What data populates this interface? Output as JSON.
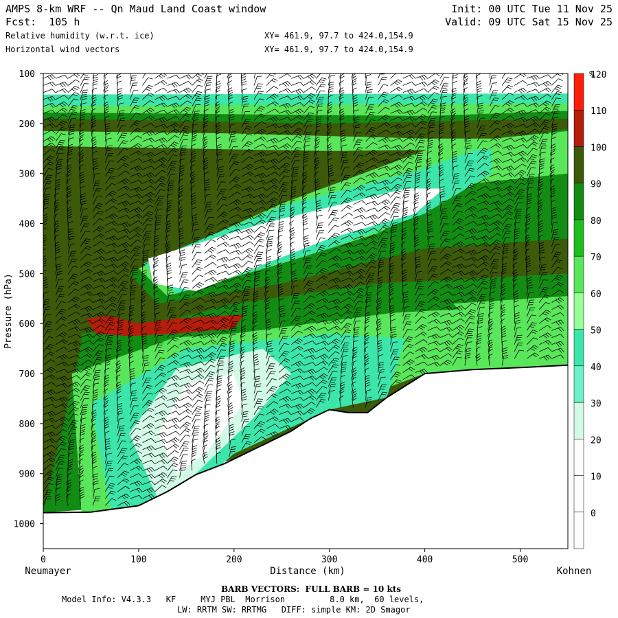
{
  "header": {
    "title": "AMPS 8-km WRF -- Qn Maud Land Coast window",
    "fcst": "Fcst:  105 h",
    "field1": "Relative humidity (w.r.t. ice)",
    "field2": "Horizontal wind vectors",
    "init": "Init: 00 UTC Tue 11 Nov 25",
    "valid": "Valid: 09 UTC Sat 15 Nov 25",
    "xy1": "XY= 461.9, 97.7 to 424.0,154.9",
    "xy2": "XY= 461.9, 97.7 to 424.0,154.9"
  },
  "chart_data": {
    "type": "heatmap",
    "xlabel": "Distance (km)",
    "ylabel": "Pressure (hPa)",
    "xlim": [
      0,
      550
    ],
    "ylim": [
      1050,
      100
    ],
    "x_ticks": [
      0,
      100,
      200,
      300,
      400,
      500
    ],
    "y_ticks": [
      100,
      200,
      300,
      400,
      500,
      600,
      700,
      800,
      900,
      1000
    ],
    "x_left_label": "Neumayer",
    "x_right_label": "Kohnen",
    "colorbar": {
      "unit": "%",
      "levels": [
        0,
        10,
        20,
        30,
        40,
        50,
        60,
        70,
        80,
        90,
        100,
        110,
        120
      ],
      "colors": [
        "#ffffff",
        "#ffffff",
        "#ffffff",
        "#d2fae6",
        "#6ef0c8",
        "#3ce6aa",
        "#96ff96",
        "#5ae65a",
        "#1ebe1e",
        "#128c12",
        "#3c5a0a",
        "#b41e0a",
        "#ff1e0a"
      ]
    },
    "terrain": [
      [
        0,
        978
      ],
      [
        50,
        977
      ],
      [
        100,
        964
      ],
      [
        130,
        936
      ],
      [
        160,
        902
      ],
      [
        190,
        880
      ],
      [
        230,
        843
      ],
      [
        260,
        815
      ],
      [
        280,
        790
      ],
      [
        300,
        772
      ],
      [
        320,
        778
      ],
      [
        340,
        778
      ],
      [
        360,
        748
      ],
      [
        400,
        700
      ],
      [
        450,
        692
      ],
      [
        500,
        688
      ],
      [
        550,
        683
      ]
    ],
    "regions": [
      {
        "rh": 105,
        "polygon": [
          [
            0,
            180
          ],
          [
            550,
            180
          ],
          [
            550,
            683
          ],
          [
            0,
            978
          ]
        ]
      },
      {
        "rh": 95,
        "polygon": [
          [
            40,
            640
          ],
          [
            200,
            560
          ],
          [
            350,
            520
          ],
          [
            550,
            500
          ],
          [
            550,
            683
          ],
          [
            400,
            700
          ],
          [
            300,
            772
          ],
          [
            200,
            860
          ],
          [
            100,
            964
          ],
          [
            0,
            978
          ]
        ]
      },
      {
        "rh": 75,
        "polygon": [
          [
            30,
            700
          ],
          [
            150,
            620
          ],
          [
            300,
            585
          ],
          [
            450,
            570
          ],
          [
            550,
            560
          ],
          [
            550,
            683
          ],
          [
            400,
            700
          ],
          [
            300,
            772
          ],
          [
            200,
            860
          ],
          [
            100,
            964
          ],
          [
            40,
            978
          ]
        ]
      },
      {
        "rh": 55,
        "polygon": [
          [
            50,
            760
          ],
          [
            150,
            650
          ],
          [
            300,
            620
          ],
          [
            380,
            630
          ],
          [
            360,
            748
          ],
          [
            300,
            772
          ],
          [
            200,
            860
          ],
          [
            140,
            960
          ],
          [
            70,
            970
          ]
        ]
      },
      {
        "rh": 35,
        "polygon": [
          [
            90,
            820
          ],
          [
            140,
            690
          ],
          [
            230,
            650
          ],
          [
            260,
            700
          ],
          [
            220,
            790
          ],
          [
            160,
            900
          ],
          [
            120,
            950
          ]
        ]
      },
      {
        "rh": 15,
        "polygon": [
          [
            120,
            820
          ],
          [
            150,
            720
          ],
          [
            200,
            700
          ],
          [
            210,
            760
          ],
          [
            170,
            860
          ],
          [
            140,
            900
          ]
        ]
      },
      {
        "rh": 95,
        "polygon": [
          [
            0,
            170
          ],
          [
            550,
            165
          ],
          [
            550,
            190
          ],
          [
            300,
            200
          ],
          [
            0,
            190
          ]
        ]
      },
      {
        "rh": 75,
        "polygon": [
          [
            0,
            150
          ],
          [
            550,
            148
          ],
          [
            550,
            175
          ],
          [
            400,
            185
          ],
          [
            0,
            178
          ]
        ]
      },
      {
        "rh": 55,
        "polygon": [
          [
            0,
            142
          ],
          [
            550,
            140
          ],
          [
            550,
            160
          ],
          [
            0,
            165
          ]
        ]
      },
      {
        "rh": 95,
        "polygon": [
          [
            90,
            500
          ],
          [
            250,
            370
          ],
          [
            420,
            250
          ],
          [
            550,
            210
          ],
          [
            550,
            430
          ],
          [
            400,
            450
          ],
          [
            250,
            520
          ],
          [
            120,
            560
          ]
        ]
      },
      {
        "rh": 75,
        "polygon": [
          [
            100,
            490
          ],
          [
            250,
            360
          ],
          [
            420,
            240
          ],
          [
            550,
            215
          ],
          [
            550,
            300
          ],
          [
            450,
            320
          ],
          [
            350,
            420
          ],
          [
            250,
            480
          ],
          [
            130,
            545
          ]
        ]
      },
      {
        "rh": 55,
        "polygon": [
          [
            105,
            480
          ],
          [
            250,
            365
          ],
          [
            400,
            290
          ],
          [
            470,
            240
          ],
          [
            470,
            300
          ],
          [
            400,
            380
          ],
          [
            300,
            450
          ],
          [
            140,
            540
          ]
        ]
      },
      {
        "rh": 15,
        "polygon": [
          [
            110,
            470
          ],
          [
            230,
            400
          ],
          [
            380,
            330
          ],
          [
            420,
            330
          ],
          [
            390,
            380
          ],
          [
            300,
            430
          ],
          [
            160,
            535
          ],
          [
            115,
            520
          ]
        ]
      },
      {
        "rh": 95,
        "polygon": [
          [
            40,
            620
          ],
          [
            200,
            585
          ],
          [
            400,
            540
          ],
          [
            550,
            520
          ],
          [
            550,
            560
          ],
          [
            400,
            570
          ],
          [
            200,
            620
          ],
          [
            40,
            640
          ]
        ]
      },
      {
        "rh": 115,
        "polygon": [
          [
            45,
            590
          ],
          [
            70,
            585
          ],
          [
            100,
            600
          ],
          [
            140,
            590
          ],
          [
            210,
            582
          ],
          [
            200,
            610
          ],
          [
            140,
            620
          ],
          [
            90,
            625
          ],
          [
            55,
            620
          ]
        ]
      },
      {
        "rh": 75,
        "polygon": [
          [
            430,
            560
          ],
          [
            550,
            545
          ],
          [
            550,
            600
          ],
          [
            450,
            605
          ]
        ]
      },
      {
        "rh": 75,
        "polygon": [
          [
            0,
            215
          ],
          [
            200,
            220
          ],
          [
            400,
            230
          ],
          [
            550,
            230
          ],
          [
            550,
            250
          ],
          [
            300,
            255
          ],
          [
            0,
            245
          ]
        ]
      }
    ]
  },
  "footer": {
    "barb_label": "BARB VECTORS:  FULL BARB = 10 kts",
    "model_info": "Model Info: V4.3.3   KF     MYJ PBL  Morrison         8.0 km,  60 levels,",
    "model_info2": "LW: RRTM SW: RRTMG   DIFF: simple KM: 2D Smagor"
  }
}
